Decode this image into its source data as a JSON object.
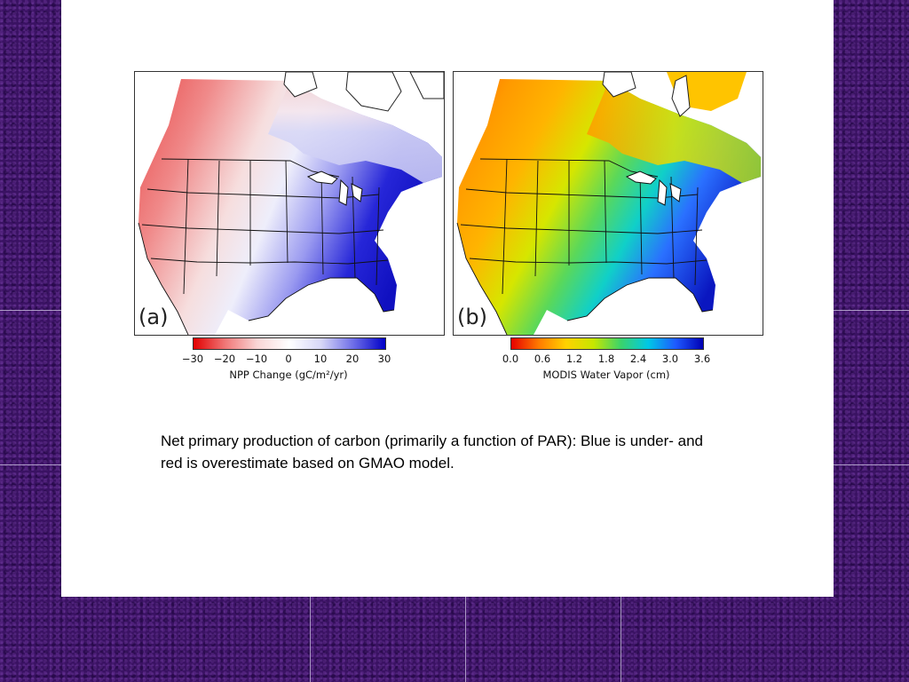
{
  "panel_a": {
    "label": "(a)",
    "colorbar_ticks": [
      "−30",
      "−20",
      "−10",
      "0",
      "10",
      "20",
      "30"
    ],
    "colorbar_title": "NPP Change (gC/m²/yr)",
    "colors": [
      "#e10000",
      "#f07878",
      "#f9d6d6",
      "#ffffff",
      "#d6d6f7",
      "#6e6ee8",
      "#0000c8"
    ]
  },
  "panel_b": {
    "label": "(b)",
    "colorbar_ticks": [
      "0.0",
      "0.6",
      "1.2",
      "1.8",
      "2.4",
      "3.0",
      "3.6"
    ],
    "colorbar_title": "MODIS Water Vapor (cm)",
    "colors": [
      "#e60000",
      "#ff7a00",
      "#ffd200",
      "#c6e600",
      "#3ad36b",
      "#00c8e6",
      "#1e5aff",
      "#0000b4"
    ]
  },
  "caption": "Net primary production of carbon (primarily a function of PAR): Blue is under- and red is overestimate based on GMAO model."
}
